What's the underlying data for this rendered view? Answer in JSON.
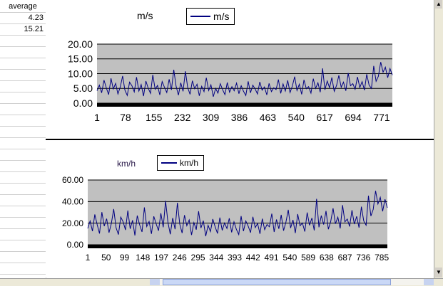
{
  "sheet": {
    "cells": [
      "average",
      "4.23",
      "15.21"
    ]
  },
  "charts": {
    "top": {
      "unit_label": "m/s",
      "legend": "m/s"
    },
    "bottom": {
      "unit_label": "km/h",
      "legend": "km/h"
    }
  },
  "colors": {
    "plot_bg": "#c0c0c0",
    "series": "#000080",
    "gridline": "#000000"
  },
  "chart_data": [
    {
      "type": "line",
      "title": "",
      "legend": [
        "m/s"
      ],
      "ylim": [
        0,
        20
      ],
      "yticks": [
        "0.00",
        "5.00",
        "10.00",
        "15.00",
        "20.00"
      ],
      "xticks": [
        "1",
        "78",
        "155",
        "232",
        "309",
        "386",
        "463",
        "540",
        "617",
        "694",
        "771"
      ],
      "x_range": [
        1,
        800
      ],
      "series": [
        {
          "name": "m/s",
          "values": [
            4.2,
            6.1,
            3.5,
            7.8,
            5.2,
            2.9,
            8.4,
            4.8,
            6.7,
            3.1,
            5.5,
            9.2,
            4.4,
            2.6,
            7.1,
            5.9,
            3.8,
            8.8,
            4.1,
            6.3,
            2.4,
            7.5,
            5.1,
            3.3,
            9.6,
            4.7,
            6.0,
            2.8,
            7.3,
            5.4,
            3.6,
            8.1,
            4.5,
            11.3,
            5.8,
            2.7,
            6.9,
            4.0,
            10.8,
            5.3,
            3.0,
            7.6,
            4.9,
            6.4,
            2.5,
            5.7,
            3.9,
            8.6,
            4.3,
            6.2,
            2.2,
            5.0,
            3.4,
            6.6,
            4.6,
            2.9,
            7.0,
            3.7,
            5.6,
            4.2,
            6.8,
            3.2,
            5.9,
            4.0,
            2.6,
            7.4,
            3.5,
            6.1,
            4.8,
            3.1,
            7.2,
            4.4,
            5.5,
            2.8,
            6.7,
            3.9,
            5.2,
            4.6,
            8.0,
            3.3,
            6.5,
            4.1,
            7.7,
            3.6,
            5.8,
            9.0,
            4.3,
            6.4,
            3.0,
            7.9,
            4.9,
            5.6,
            3.4,
            8.3,
            5.0,
            6.9,
            3.7,
            11.8,
            4.5,
            7.5,
            5.2,
            8.7,
            4.0,
            6.0,
            9.4,
            5.4,
            7.1,
            4.2,
            10.2,
            5.9,
            6.6,
            4.7,
            8.9,
            5.3,
            7.3,
            4.4,
            9.8,
            6.1,
            5.0,
            12.6,
            7.4,
            9.1,
            13.9,
            10.5,
            12.2,
            8.6,
            11.7,
            9.5
          ]
        }
      ]
    },
    {
      "type": "line",
      "title": "",
      "legend": [
        "km/h"
      ],
      "ylim": [
        0,
        60
      ],
      "yticks": [
        "0.00",
        "20.00",
        "40.00",
        "60.00"
      ],
      "xticks": [
        "1",
        "50",
        "99",
        "148",
        "197",
        "246",
        "295",
        "344",
        "393",
        "442",
        "491",
        "540",
        "589",
        "638",
        "687",
        "736",
        "785"
      ],
      "x_range": [
        1,
        800
      ],
      "series": [
        {
          "name": "km/h",
          "values": [
            15.1,
            22.0,
            12.6,
            28.1,
            18.7,
            10.4,
            30.2,
            17.3,
            24.1,
            11.2,
            19.8,
            33.1,
            15.8,
            9.4,
            25.6,
            21.2,
            13.7,
            31.7,
            14.8,
            22.7,
            8.6,
            27.0,
            18.4,
            11.9,
            34.6,
            16.9,
            21.6,
            10.1,
            26.3,
            19.4,
            13.0,
            29.2,
            16.2,
            40.7,
            20.9,
            9.7,
            24.8,
            14.4,
            38.9,
            19.1,
            10.8,
            27.4,
            17.6,
            23.0,
            9.0,
            20.5,
            14.0,
            31.0,
            15.5,
            22.3,
            7.9,
            18.0,
            12.2,
            23.8,
            16.6,
            10.4,
            25.2,
            13.3,
            20.2,
            15.1,
            24.5,
            11.5,
            21.2,
            14.4,
            9.4,
            26.6,
            12.6,
            22.0,
            17.3,
            11.2,
            25.9,
            15.8,
            19.8,
            10.1,
            24.1,
            14.0,
            18.7,
            16.6,
            28.8,
            11.9,
            23.4,
            14.8,
            27.7,
            13.0,
            20.9,
            32.4,
            15.5,
            23.0,
            10.8,
            28.4,
            17.6,
            20.2,
            12.2,
            29.9,
            18.0,
            24.8,
            13.3,
            42.5,
            16.2,
            27.0,
            18.7,
            31.3,
            14.4,
            21.6,
            33.8,
            19.4,
            25.6,
            15.1,
            36.7,
            21.2,
            23.8,
            16.9,
            32.0,
            19.1,
            26.3,
            15.8,
            35.3,
            22.0,
            18.0,
            45.4,
            26.6,
            32.8,
            50.0,
            37.8,
            43.9,
            31.0,
            42.1,
            34.2
          ]
        }
      ]
    }
  ]
}
